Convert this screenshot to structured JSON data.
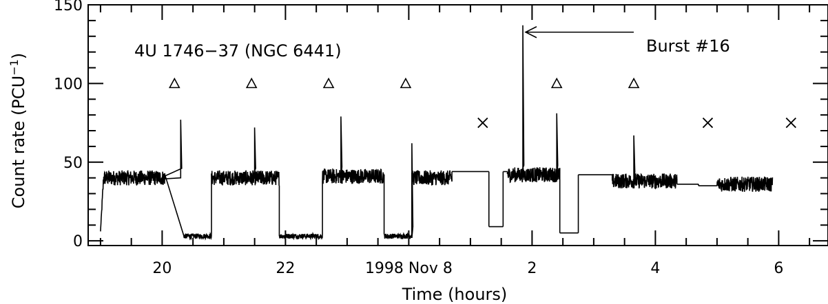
{
  "chart_data": {
    "type": "line",
    "title": "",
    "xlabel": "Time (hours)",
    "ylabel": "Count rate (PCU",
    "ylabel_sup": "−1",
    "ylabel_close": ")",
    "ylim": [
      -3,
      150
    ],
    "xlim": [
      18.8,
      30.8
    ],
    "grid": false,
    "y_ticks": [
      0,
      50,
      100,
      150
    ],
    "y_tick_labels": [
      "0",
      "50",
      "100",
      "150"
    ],
    "x_ticks": [
      20,
      22,
      24,
      26,
      28,
      30
    ],
    "x_tick_labels": [
      "20",
      "22",
      "1998 Nov 8",
      "2",
      "4",
      "6"
    ],
    "source_label": "4U 1746−37 (NGC 6441)",
    "annotation": {
      "text": "Burst #16",
      "x": 25.85,
      "y": 137
    },
    "series": [
      {
        "segments": [
          {
            "t0": 19.0,
            "t1": 20.05,
            "level": 40,
            "noise": 3,
            "ramp_from": 6,
            "ramp_dur": 0.05,
            "bursts": [
              {
                "t": 20.3,
                "peak": 77
              }
            ],
            "pre_drop": 0.05
          },
          {
            "t0": 20.35,
            "t1": 20.8,
            "level": 3,
            "noise": 1
          },
          {
            "t0": 20.8,
            "t1": 21.9,
            "level": 40,
            "noise": 3,
            "bursts": [
              {
                "t": 21.5,
                "peak": 72
              }
            ]
          },
          {
            "t0": 21.9,
            "t1": 22.6,
            "level": 3,
            "noise": 1
          },
          {
            "t0": 22.6,
            "t1": 23.6,
            "level": 41,
            "noise": 3,
            "bursts": [
              {
                "t": 22.9,
                "peak": 79
              }
            ]
          },
          {
            "t0": 23.6,
            "t1": 24.05,
            "level": 3,
            "noise": 1,
            "bursts": [
              {
                "t": 24.05,
                "peak": 62
              }
            ]
          },
          {
            "t0": 24.05,
            "t1": 24.7,
            "level": 40,
            "noise": 3
          }
        ]
      }
    ],
    "steps": [
      {
        "x": [
          24.7,
          25.3
        ],
        "y": 44
      },
      {
        "x": [
          25.3,
          25.53
        ],
        "y": 9
      },
      {
        "x": [
          25.53,
          25.6
        ],
        "y": 44
      }
    ],
    "post_segments": [
      {
        "t0": 25.6,
        "t1": 26.45,
        "level": 42,
        "noise": 3,
        "bursts": [
          {
            "t": 25.85,
            "peak": 137
          },
          {
            "t": 26.4,
            "peak": 81
          }
        ]
      },
      {
        "t0": 26.45,
        "t1": 26.75,
        "level": 5,
        "noise": 0
      },
      {
        "t0": 26.75,
        "t1": 27.3,
        "level": 42,
        "noise": 0
      },
      {
        "t0": 27.3,
        "t1": 28.35,
        "level": 38,
        "noise": 3,
        "bursts": [
          {
            "t": 27.65,
            "peak": 67
          }
        ]
      },
      {
        "t0": 28.35,
        "t1": 28.7,
        "level": 36,
        "noise": 0
      },
      {
        "t0": 28.7,
        "t1": 29.0,
        "level": 35,
        "noise": 0
      },
      {
        "t0": 29.0,
        "t1": 29.9,
        "level": 36,
        "noise": 3
      }
    ],
    "triangles": [
      {
        "x": 20.2,
        "y": 100
      },
      {
        "x": 21.45,
        "y": 100
      },
      {
        "x": 22.7,
        "y": 100
      },
      {
        "x": 23.95,
        "y": 100
      },
      {
        "x": 26.4,
        "y": 100
      },
      {
        "x": 27.65,
        "y": 100
      }
    ],
    "crosses": [
      {
        "x": 25.2,
        "y": 75
      },
      {
        "x": 28.85,
        "y": 75
      },
      {
        "x": 30.2,
        "y": 75
      }
    ]
  }
}
